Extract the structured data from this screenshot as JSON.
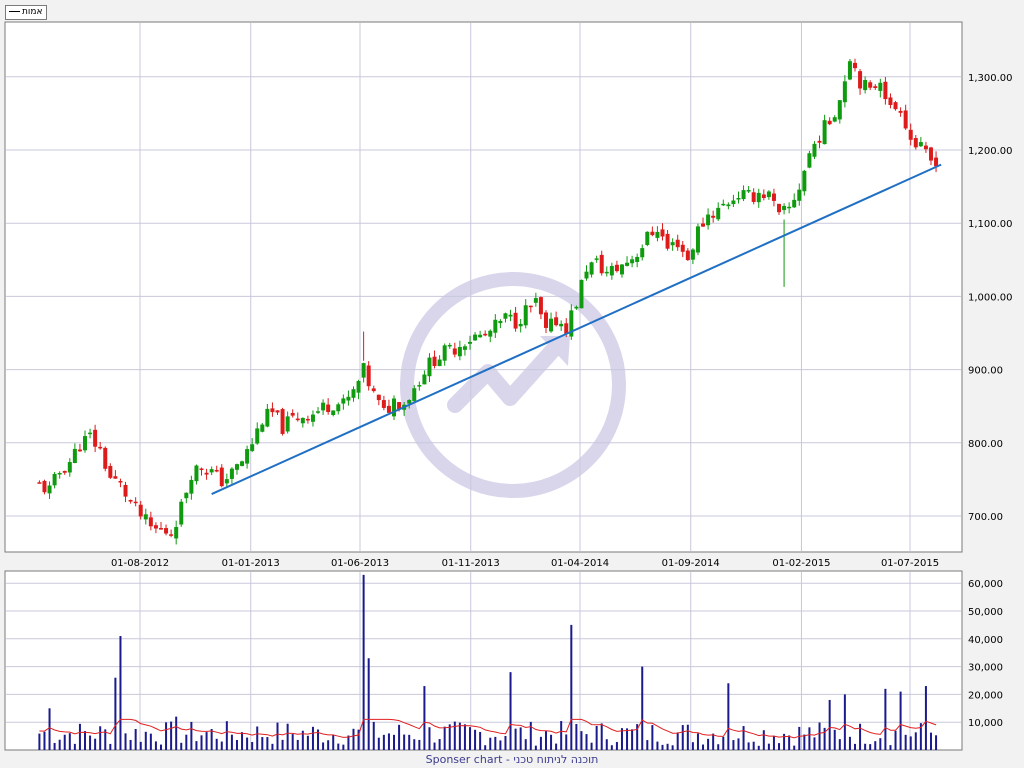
{
  "legend": {
    "label": "אמות"
  },
  "footer": {
    "text": "Sponser chart - תוכנה לניתוח טכני"
  },
  "colors": {
    "up": "#0f9a0f",
    "down": "#dd1b1b",
    "trendline": "#1f6fc4",
    "volume": "#1a1a8c",
    "volume_avg": "#e02020",
    "grid": "#c8c8dc",
    "watermark": "#d9d6ec"
  },
  "chart_data": [
    {
      "type": "candlestick",
      "title": "",
      "x_tick_labels": [
        "01-08-2012",
        "01-01-2013",
        "01-06-2013",
        "01-11-2013",
        "01-04-2014",
        "01-09-2014",
        "01-02-2015",
        "01-07-2015"
      ],
      "y_tick_labels": [
        "700.00",
        "800.00",
        "900.00",
        "1,000.00",
        "1,100.00",
        "1,200.00",
        "1,300.00"
      ],
      "ylim": [
        655,
        1365
      ],
      "grid": true,
      "series": [
        {
          "start": "2012-03-15",
          "interval_days": 7,
          "close_path": [
            [
              "2012-03-15",
              742
            ],
            [
              "2012-03-29",
              735
            ],
            [
              "2012-04-12",
              760
            ],
            [
              "2012-04-26",
              775
            ],
            [
              "2012-05-10",
              798
            ],
            [
              "2012-05-24",
              808
            ],
            [
              "2012-06-07",
              790
            ],
            [
              "2012-06-21",
              752
            ],
            [
              "2012-07-05",
              742
            ],
            [
              "2012-07-19",
              718
            ],
            [
              "2012-08-02",
              700
            ],
            [
              "2012-08-16",
              683
            ],
            [
              "2012-08-30",
              680
            ],
            [
              "2012-09-13",
              678
            ],
            [
              "2012-09-27",
              712
            ],
            [
              "2012-10-11",
              760
            ],
            [
              "2012-10-25",
              768
            ],
            [
              "2012-11-08",
              760
            ],
            [
              "2012-11-22",
              748
            ],
            [
              "2012-12-06",
              758
            ],
            [
              "2012-12-20",
              775
            ],
            [
              "2013-01-03",
              800
            ],
            [
              "2013-01-17",
              832
            ],
            [
              "2013-01-31",
              840
            ],
            [
              "2013-02-14",
              822
            ],
            [
              "2013-02-28",
              832
            ],
            [
              "2013-03-14",
              838
            ],
            [
              "2013-03-28",
              840
            ],
            [
              "2013-04-11",
              848
            ],
            [
              "2013-04-25",
              855
            ],
            [
              "2013-05-09",
              852
            ],
            [
              "2013-05-23",
              868
            ],
            [
              "2013-06-06",
              898
            ],
            [
              "2013-06-20",
              865
            ],
            [
              "2013-07-04",
              840
            ],
            [
              "2013-07-18",
              858
            ],
            [
              "2013-08-01",
              855
            ],
            [
              "2013-08-15",
              875
            ],
            [
              "2013-08-29",
              900
            ],
            [
              "2013-09-12",
              915
            ],
            [
              "2013-09-26",
              923
            ],
            [
              "2013-10-10",
              930
            ],
            [
              "2013-10-24",
              940
            ],
            [
              "2013-11-07",
              945
            ],
            [
              "2013-11-21",
              945
            ],
            [
              "2013-12-05",
              958
            ],
            [
              "2013-12-19",
              970
            ],
            [
              "2014-01-02",
              966
            ],
            [
              "2014-01-16",
              980
            ],
            [
              "2014-01-30",
              990
            ],
            [
              "2014-02-13",
              950
            ],
            [
              "2014-02-27",
              968
            ],
            [
              "2014-03-13",
              958
            ],
            [
              "2014-03-27",
              992
            ],
            [
              "2014-04-10",
              1040
            ],
            [
              "2014-04-24",
              1045
            ],
            [
              "2014-05-08",
              1032
            ],
            [
              "2014-05-22",
              1038
            ],
            [
              "2014-06-05",
              1048
            ],
            [
              "2014-06-19",
              1060
            ],
            [
              "2014-07-03",
              1080
            ],
            [
              "2014-07-17",
              1095
            ],
            [
              "2014-07-31",
              1065
            ],
            [
              "2014-08-14",
              1075
            ],
            [
              "2014-08-28",
              1050
            ],
            [
              "2014-09-11",
              1090
            ],
            [
              "2014-09-25",
              1112
            ],
            [
              "2014-10-09",
              1118
            ],
            [
              "2014-10-23",
              1130
            ],
            [
              "2014-11-06",
              1140
            ],
            [
              "2014-11-20",
              1135
            ],
            [
              "2014-12-04",
              1142
            ],
            [
              "2014-12-18",
              1138
            ],
            [
              "2015-01-01",
              1108
            ],
            [
              "2015-01-15",
              1120
            ],
            [
              "2015-01-29",
              1150
            ],
            [
              "2015-02-12",
              1195
            ],
            [
              "2015-02-26",
              1220
            ],
            [
              "2015-03-12",
              1240
            ],
            [
              "2015-03-26",
              1270
            ],
            [
              "2015-04-09",
              1330
            ],
            [
              "2015-04-23",
              1295
            ],
            [
              "2015-05-07",
              1278
            ],
            [
              "2015-05-21",
              1300
            ],
            [
              "2015-06-04",
              1255
            ],
            [
              "2015-06-18",
              1260
            ],
            [
              "2015-07-02",
              1215
            ],
            [
              "2015-07-16",
              1200
            ],
            [
              "2015-07-30",
              1185
            ],
            [
              "2015-08-06",
              1188
            ]
          ],
          "annotations": [
            {
              "date": "2015-01-08",
              "low": 1013,
              "high": 1105
            },
            {
              "date": "2013-06-06",
              "high": 952
            }
          ]
        }
      ],
      "trendline": {
        "start": [
          "2012-11-08",
          730
        ],
        "end": [
          "2015-08-13",
          1180
        ]
      }
    },
    {
      "type": "bar",
      "title": "",
      "y_tick_labels": [
        "10,000",
        "20,000",
        "30,000",
        "40,000",
        "50,000",
        "60,000"
      ],
      "ylim": [
        0,
        63000
      ],
      "moving_average": true,
      "spikes": [
        [
          "2012-07-05",
          41000
        ],
        [
          "2012-06-28",
          26000
        ],
        [
          "2012-03-29",
          15000
        ],
        [
          "2012-09-20",
          12000
        ],
        [
          "2013-06-06",
          63000
        ],
        [
          "2013-06-13",
          33000
        ],
        [
          "2013-08-29",
          23000
        ],
        [
          "2013-12-26",
          28000
        ],
        [
          "2014-03-20",
          45000
        ],
        [
          "2014-06-26",
          30000
        ],
        [
          "2014-10-23",
          24000
        ],
        [
          "2015-04-02",
          20000
        ],
        [
          "2015-05-28",
          22000
        ],
        [
          "2015-06-18",
          21000
        ],
        [
          "2015-07-23",
          23000
        ],
        [
          "2015-03-12",
          18000
        ]
      ]
    }
  ]
}
